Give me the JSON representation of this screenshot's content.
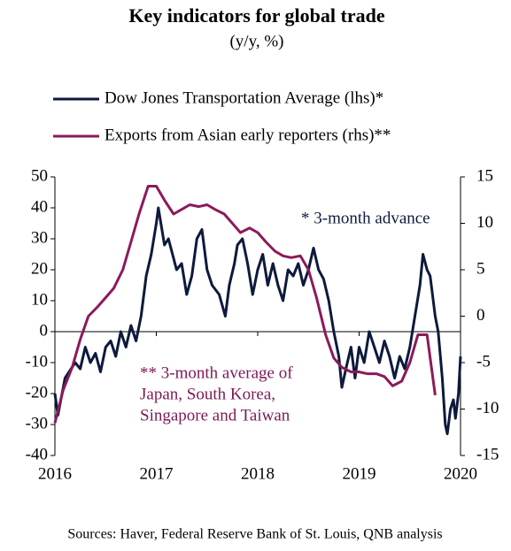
{
  "chart_data": {
    "type": "line",
    "title": "Key indicators for global trade",
    "subtitle": "(y/y, %)",
    "source": "Sources: Haver, Federal Reserve Bank of St. Louis, QNB analysis",
    "annotations": [
      "* 3-month advance",
      "** 3-month average of",
      "Japan, South Korea,",
      "Singapore and Taiwan"
    ],
    "xlim": [
      2016,
      2020
    ],
    "xticks": [
      2016,
      2017,
      2018,
      2019,
      2020
    ],
    "ylim": [
      -40,
      50
    ],
    "yticks": [
      -40,
      -30,
      -20,
      -10,
      0,
      10,
      20,
      30,
      40,
      50
    ],
    "y2lim": [
      -15,
      15
    ],
    "y2ticks": [
      -15,
      -10,
      -5,
      0,
      5,
      10,
      15
    ],
    "series": [
      {
        "name": "Dow Jones Transportation Average (lhs)*",
        "color": "#0d1a3d",
        "x": [
          2016.0,
          2016.03,
          2016.1,
          2016.2,
          2016.25,
          2016.3,
          2016.35,
          2016.4,
          2016.45,
          2016.5,
          2016.55,
          2016.6,
          2016.65,
          2016.7,
          2016.75,
          2016.8,
          2016.85,
          2016.9,
          2016.95,
          2017.0,
          2017.02,
          2017.08,
          2017.12,
          2017.2,
          2017.25,
          2017.3,
          2017.35,
          2017.4,
          2017.45,
          2017.5,
          2017.55,
          2017.62,
          2017.68,
          2017.72,
          2017.77,
          2017.8,
          2017.85,
          2017.9,
          2017.95,
          2018.0,
          2018.05,
          2018.1,
          2018.15,
          2018.2,
          2018.25,
          2018.3,
          2018.35,
          2018.4,
          2018.45,
          2018.5,
          2018.55,
          2018.6,
          2018.65,
          2018.7,
          2018.75,
          2018.8,
          2018.83,
          2018.87,
          2018.92,
          2018.96,
          2019.0,
          2019.05,
          2019.1,
          2019.15,
          2019.2,
          2019.25,
          2019.3,
          2019.35,
          2019.4,
          2019.45,
          2019.5,
          2019.55,
          2019.6,
          2019.63,
          2019.67,
          2019.7,
          2019.75,
          2019.78,
          2019.82,
          2019.85,
          2019.87,
          2019.9,
          2019.93,
          2019.95,
          2019.98,
          2020.0
        ],
        "values": [
          -20,
          -27,
          -15,
          -10,
          -12,
          -5,
          -10,
          -7,
          -13,
          -5,
          -3,
          -8,
          0,
          -5,
          2,
          -3,
          5,
          18,
          25,
          35,
          40,
          28,
          30,
          20,
          22,
          12,
          18,
          30,
          33,
          20,
          15,
          12,
          5,
          15,
          22,
          28,
          30,
          22,
          12,
          20,
          25,
          15,
          22,
          15,
          10,
          20,
          18,
          22,
          15,
          20,
          27,
          20,
          17,
          10,
          0,
          -8,
          -18,
          -12,
          -5,
          -15,
          -5,
          -10,
          0,
          -5,
          -10,
          -3,
          -8,
          -15,
          -8,
          -12,
          -5,
          5,
          15,
          25,
          20,
          18,
          5,
          0,
          -15,
          -30,
          -33,
          -25,
          -22,
          -28,
          -20,
          -8
        ]
      },
      {
        "name": "Exports from Asian early reporters (rhs)**",
        "color": "#8b1a5a",
        "axis": "y2",
        "x": [
          2016.0,
          2016.08,
          2016.17,
          2016.25,
          2016.33,
          2016.42,
          2016.5,
          2016.58,
          2016.67,
          2016.75,
          2016.83,
          2016.92,
          2017.0,
          2017.08,
          2017.17,
          2017.25,
          2017.33,
          2017.42,
          2017.5,
          2017.58,
          2017.67,
          2017.75,
          2017.83,
          2017.92,
          2018.0,
          2018.08,
          2018.17,
          2018.25,
          2018.33,
          2018.42,
          2018.5,
          2018.58,
          2018.67,
          2018.75,
          2018.83,
          2018.92,
          2019.0,
          2019.08,
          2019.17,
          2019.25,
          2019.33,
          2019.42,
          2019.5,
          2019.58,
          2019.67,
          2019.75
        ],
        "values": [
          -11.5,
          -8,
          -5.5,
          -2.5,
          0,
          1,
          2,
          3,
          5,
          8,
          11,
          14,
          14,
          12.5,
          11,
          11.5,
          12,
          11.8,
          12,
          11.5,
          11,
          10,
          9,
          9.5,
          9,
          8,
          7,
          6.5,
          6.3,
          6.5,
          5,
          2,
          -2,
          -4.5,
          -5.5,
          -6,
          -6,
          -6.2,
          -6.2,
          -6.5,
          -7.5,
          -7,
          -5,
          -2,
          -2,
          -8.5
        ]
      }
    ]
  }
}
